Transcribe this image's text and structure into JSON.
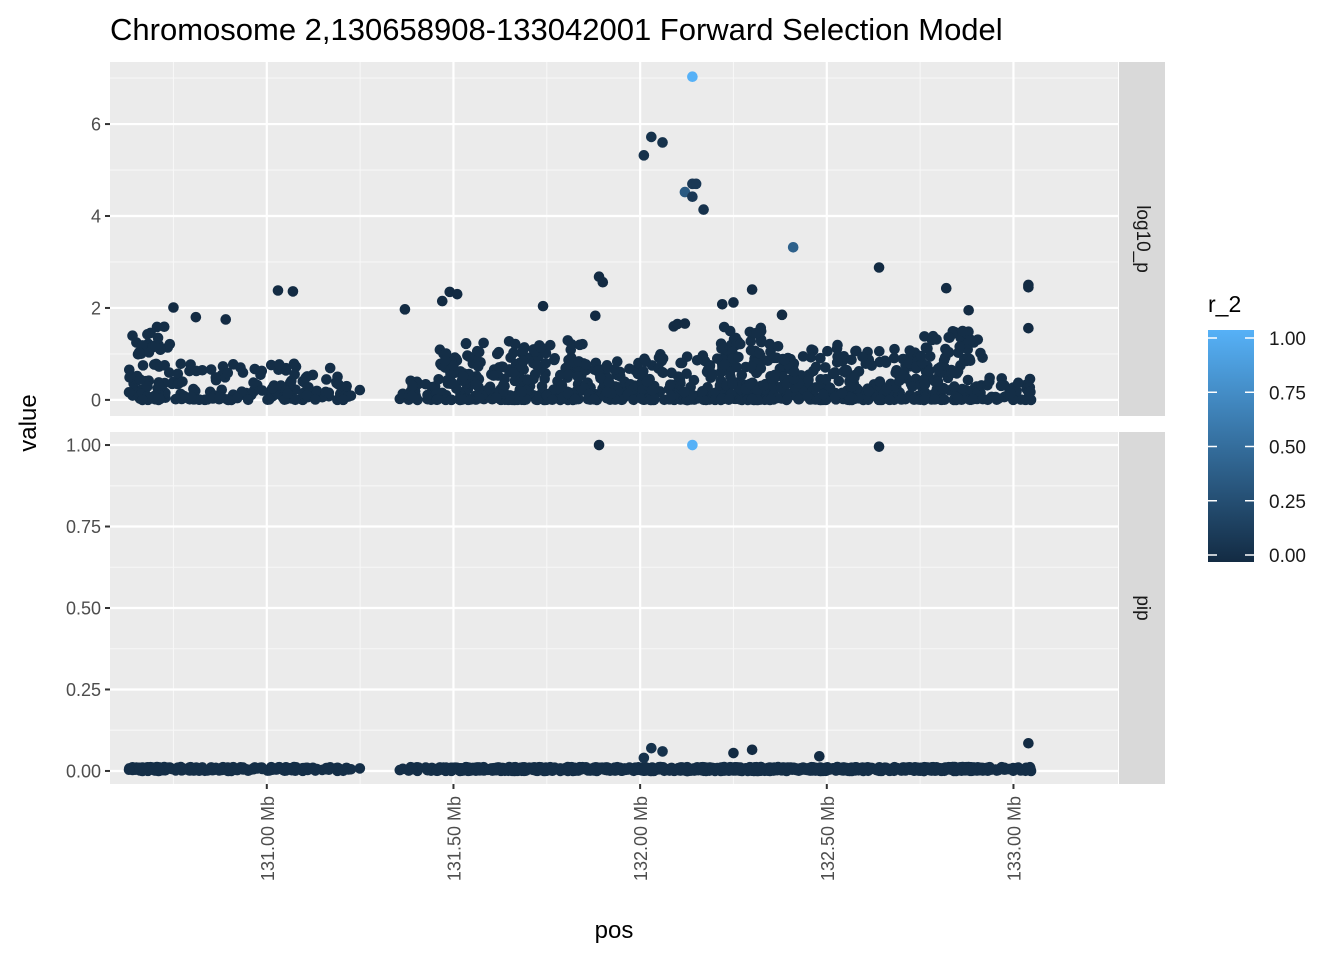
{
  "chart_data": {
    "type": "scatter",
    "title": "Chromosome 2,130658908-133042001 Forward Selection Model",
    "xlabel": "pos",
    "ylabel": "value",
    "x_unit": "Mb",
    "xlim": [
      130.58,
      133.28
    ],
    "x_ticks": [
      131.0,
      131.5,
      132.0,
      132.5,
      133.0
    ],
    "x_tick_labels": [
      "131.00 Mb",
      "131.50 Mb",
      "132.00 Mb",
      "132.50 Mb",
      "133.00 Mb"
    ],
    "grid": true,
    "legend": {
      "title": "r_2",
      "position": "right",
      "type": "colorbar",
      "low_color": "#132B43",
      "high_color": "#56B1F7",
      "limits": [
        0,
        1
      ],
      "tick_labels": [
        "0.00",
        "0.25",
        "0.50",
        "0.75",
        "1.00"
      ],
      "tick_values": [
        0,
        0.25,
        0.5,
        0.75,
        1.0
      ]
    },
    "facets": [
      {
        "label": "log10_p",
        "ylim": [
          -0.35,
          7.35
        ],
        "y_ticks": [
          0,
          2,
          4,
          6
        ],
        "y_tick_labels": [
          "0",
          "2",
          "4",
          "6"
        ],
        "highlight_points": [
          {
            "x": 132.14,
            "y": 7.03,
            "r_2": 1.0
          },
          {
            "x": 132.01,
            "y": 5.32,
            "r_2": 0.05
          },
          {
            "x": 132.03,
            "y": 5.72,
            "r_2": 0.05
          },
          {
            "x": 132.06,
            "y": 5.6,
            "r_2": 0.05
          },
          {
            "x": 132.12,
            "y": 4.52,
            "r_2": 0.35
          },
          {
            "x": 132.14,
            "y": 4.7,
            "r_2": 0.1
          },
          {
            "x": 132.15,
            "y": 4.7,
            "r_2": 0.1
          },
          {
            "x": 132.14,
            "y": 4.42,
            "r_2": 0.1
          },
          {
            "x": 132.17,
            "y": 4.14,
            "r_2": 0.05
          },
          {
            "x": 132.41,
            "y": 3.32,
            "r_2": 0.4
          },
          {
            "x": 132.64,
            "y": 2.88,
            "r_2": 0.0
          },
          {
            "x": 131.89,
            "y": 2.68,
            "r_2": 0.0
          },
          {
            "x": 131.9,
            "y": 2.56,
            "r_2": 0.0
          },
          {
            "x": 131.03,
            "y": 2.38,
            "r_2": 0.0
          },
          {
            "x": 131.07,
            "y": 2.36,
            "r_2": 0.0
          },
          {
            "x": 132.82,
            "y": 2.43,
            "r_2": 0.0
          },
          {
            "x": 133.04,
            "y": 2.45,
            "r_2": 0.0
          },
          {
            "x": 133.04,
            "y": 2.5,
            "r_2": 0.0
          },
          {
            "x": 132.3,
            "y": 2.4,
            "r_2": 0.0
          },
          {
            "x": 131.49,
            "y": 2.35,
            "r_2": 0.0
          },
          {
            "x": 131.51,
            "y": 2.3,
            "r_2": 0.0
          },
          {
            "x": 131.47,
            "y": 2.15,
            "r_2": 0.0
          },
          {
            "x": 131.74,
            "y": 2.04,
            "r_2": 0.0
          },
          {
            "x": 131.37,
            "y": 1.97,
            "r_2": 0.0
          },
          {
            "x": 130.75,
            "y": 2.01,
            "r_2": 0.0
          },
          {
            "x": 132.22,
            "y": 2.08,
            "r_2": 0.0
          },
          {
            "x": 132.25,
            "y": 2.12,
            "r_2": 0.0
          },
          {
            "x": 132.88,
            "y": 1.95,
            "r_2": 0.0
          },
          {
            "x": 131.88,
            "y": 1.83,
            "r_2": 0.0
          },
          {
            "x": 132.38,
            "y": 1.85,
            "r_2": 0.0
          },
          {
            "x": 130.89,
            "y": 1.75,
            "r_2": 0.0
          },
          {
            "x": 130.81,
            "y": 1.8,
            "r_2": 0.0
          },
          {
            "x": 133.04,
            "y": 1.56,
            "r_2": 0.0
          },
          {
            "x": 132.09,
            "y": 1.6,
            "r_2": 0.0
          },
          {
            "x": 132.1,
            "y": 1.65,
            "r_2": 0.0
          },
          {
            "x": 132.12,
            "y": 1.66,
            "r_2": 0.0
          }
        ],
        "background_points_range": {
          "x": [
            130.63,
            133.05
          ],
          "y": [
            0.0,
            1.9
          ]
        }
      },
      {
        "label": "pip",
        "ylim": [
          -0.04,
          1.04
        ],
        "y_ticks": [
          0,
          0.25,
          0.5,
          0.75,
          1.0
        ],
        "y_tick_labels": [
          "0.00",
          "0.25",
          "0.50",
          "0.75",
          "1.00"
        ],
        "highlight_points": [
          {
            "x": 131.89,
            "y": 1.0,
            "r_2": 0.0
          },
          {
            "x": 132.14,
            "y": 1.0,
            "r_2": 1.0
          },
          {
            "x": 132.64,
            "y": 0.995,
            "r_2": 0.0
          },
          {
            "x": 133.04,
            "y": 0.085,
            "r_2": 0.0
          },
          {
            "x": 132.03,
            "y": 0.07,
            "r_2": 0.05
          },
          {
            "x": 132.06,
            "y": 0.06,
            "r_2": 0.05
          },
          {
            "x": 132.3,
            "y": 0.065,
            "r_2": 0.0
          },
          {
            "x": 132.25,
            "y": 0.055,
            "r_2": 0.0
          },
          {
            "x": 132.01,
            "y": 0.04,
            "r_2": 0.05
          },
          {
            "x": 132.48,
            "y": 0.045,
            "r_2": 0.0
          }
        ],
        "background_points_range": {
          "x": [
            130.63,
            133.05
          ],
          "y": [
            0.0,
            0.03
          ]
        }
      }
    ]
  }
}
